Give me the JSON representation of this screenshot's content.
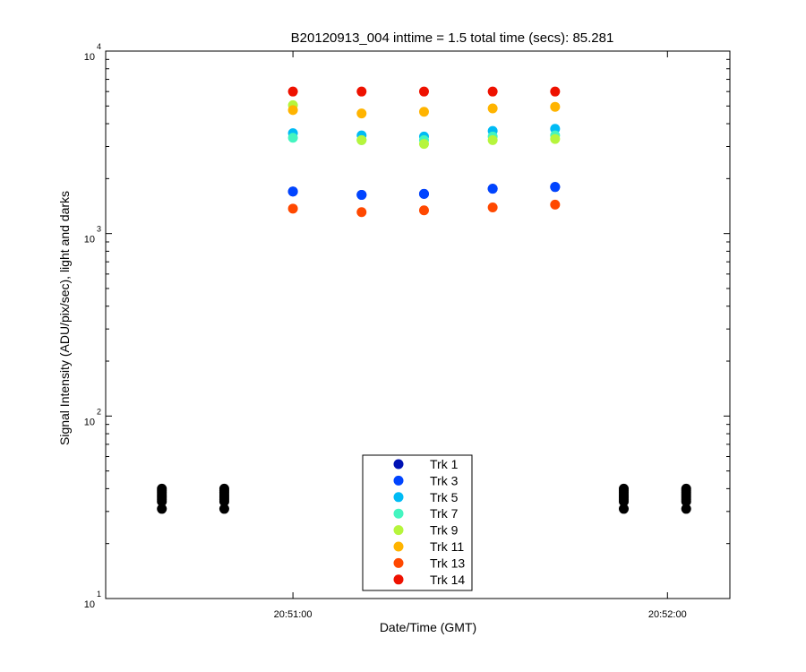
{
  "chart_data": {
    "type": "scatter",
    "title": "B20120913_004 inttime = 1.5 total time (secs): 85.281",
    "xlabel": "Date/Time (GMT)",
    "ylabel": "Signal Intensity (ADU/pix/sec), light and darks",
    "yscale": "log",
    "ylim": [
      10,
      10000
    ],
    "xlim": [
      "20:50:30",
      "20:52:10"
    ],
    "x_ticks": [
      "20:51:00",
      "20:52:00"
    ],
    "y_ticks": [
      {
        "base": "10",
        "exp": "1"
      },
      {
        "base": "10",
        "exp": "2"
      },
      {
        "base": "10",
        "exp": "3"
      },
      {
        "base": "10",
        "exp": "4"
      }
    ],
    "grid": false,
    "legend_position": "bottom-center",
    "light_times": [
      "20:51:00",
      "20:51:11",
      "20:51:21",
      "20:51:32",
      "20:51:42"
    ],
    "dark_times": [
      "20:50:39",
      "20:50:49",
      "20:51:53",
      "20:52:03"
    ],
    "dark_values": [
      31,
      34,
      35,
      36,
      37,
      38,
      39,
      40
    ],
    "series": [
      {
        "name": "Trk 1",
        "color": "#0012b4",
        "values": [
          1700,
          1630,
          1650,
          1760,
          1800
        ]
      },
      {
        "name": "Trk 3",
        "color": "#0044ff",
        "values": [
          1700,
          1630,
          1650,
          1760,
          1800
        ]
      },
      {
        "name": "Trk 5",
        "color": "#00bbf5",
        "values": [
          3550,
          3450,
          3400,
          3650,
          3750
        ]
      },
      {
        "name": "Trk 7",
        "color": "#44f5c0",
        "values": [
          3350,
          3250,
          3250,
          3400,
          3450
        ]
      },
      {
        "name": "Trk 9",
        "color": "#b6f53c",
        "values": [
          5050,
          3250,
          3100,
          3250,
          3300
        ]
      },
      {
        "name": "Trk 11",
        "color": "#ffb400",
        "values": [
          4750,
          4550,
          4650,
          4850,
          4950
        ]
      },
      {
        "name": "Trk 13",
        "color": "#ff4800",
        "values": [
          1370,
          1310,
          1340,
          1390,
          1440
        ]
      },
      {
        "name": "Trk 14",
        "color": "#ee1100",
        "values": [
          6000,
          6000,
          6000,
          6000,
          6000
        ]
      }
    ],
    "dark_color": "#000000"
  }
}
